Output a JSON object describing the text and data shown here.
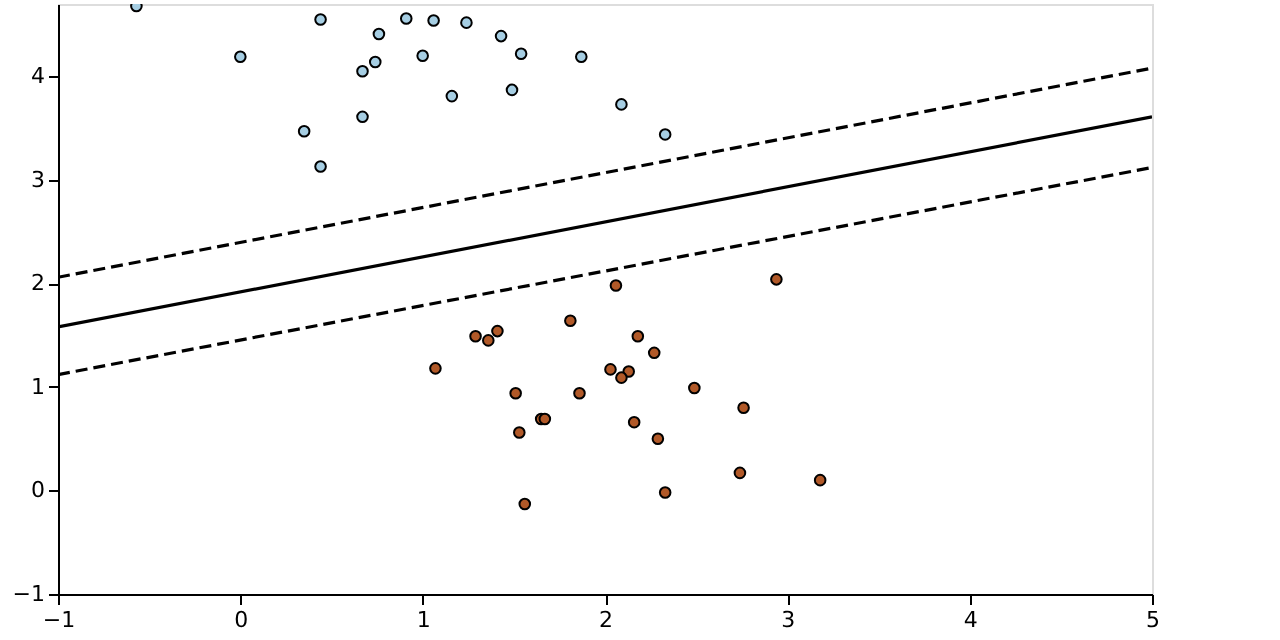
{
  "chart_data": {
    "type": "scatter",
    "marker": "circle",
    "grid": false,
    "xlim": [
      -1,
      5
    ],
    "xticks": [
      -1,
      0,
      1,
      2,
      3,
      4,
      5
    ],
    "ylim": [
      -1,
      4.7
    ],
    "yticks": [
      -1,
      0,
      1,
      2,
      3,
      4
    ],
    "series": [
      {
        "color": "#a6cee3",
        "x": [
          -0.57,
          0.0,
          0.44,
          0.76,
          0.91,
          1.06,
          1.24,
          1.43,
          1.54,
          1.87,
          1.0,
          0.74,
          0.67,
          1.16,
          1.49,
          2.09,
          2.33,
          0.67,
          0.35,
          0.44
        ],
        "values": [
          4.68,
          4.19,
          4.55,
          4.41,
          4.56,
          4.54,
          4.52,
          4.39,
          4.22,
          4.19,
          4.2,
          4.14,
          4.05,
          3.81,
          3.87,
          3.73,
          3.44,
          3.61,
          3.47,
          3.13
        ]
      },
      {
        "color": "#b15928",
        "x": [
          2.06,
          2.94,
          1.81,
          1.41,
          1.29,
          1.36,
          2.18,
          2.27,
          1.07,
          2.03,
          2.13,
          2.09,
          1.51,
          1.86,
          2.49,
          2.76,
          1.65,
          1.67,
          2.16,
          1.53,
          2.29,
          2.74,
          3.18,
          2.33,
          1.56
        ],
        "values": [
          1.98,
          2.04,
          1.64,
          1.54,
          1.49,
          1.45,
          1.49,
          1.33,
          1.18,
          1.17,
          1.15,
          1.09,
          0.94,
          0.94,
          0.99,
          0.8,
          0.69,
          0.69,
          0.66,
          0.56,
          0.5,
          0.17,
          0.1,
          -0.02,
          -0.13
        ]
      },
      {
        "type": "line",
        "marker": "none",
        "color": "#000000",
        "line_style": "solid",
        "x": [
          -1,
          5
        ],
        "values": [
          1.58,
          3.61
        ]
      },
      {
        "type": "line",
        "marker": "none",
        "color": "#000000",
        "line_style": "dashed",
        "x": [
          -1,
          5
        ],
        "values": [
          2.06,
          4.08
        ]
      },
      {
        "type": "line",
        "marker": "none",
        "color": "#000000",
        "line_style": "dashed",
        "x": [
          -1,
          5
        ],
        "values": [
          1.12,
          3.12
        ]
      }
    ]
  }
}
